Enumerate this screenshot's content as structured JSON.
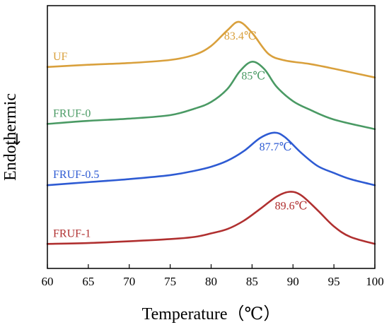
{
  "chart_data": {
    "type": "line",
    "xlabel": "Temperature（℃）",
    "ylabel": "Endothermic",
    "ylabel_arrow": "↓",
    "xlim": [
      60,
      100
    ],
    "xticks": [
      60,
      65,
      70,
      75,
      80,
      85,
      90,
      95,
      100
    ],
    "grid": false,
    "yticks_shown": false,
    "series": [
      {
        "name": "UF",
        "color": "#D9A03C",
        "peak_label": "83.4℃",
        "peak_x": 83.4,
        "x": [
          60,
          65,
          70,
          75,
          78,
          80,
          82,
          83.4,
          85,
          87,
          89,
          92,
          95,
          100
        ],
        "y": [
          1.0,
          1.05,
          1.09,
          1.16,
          1.28,
          1.48,
          1.84,
          2.03,
          1.78,
          1.3,
          1.15,
          1.07,
          0.96,
          0.76
        ]
      },
      {
        "name": "FRUF-0",
        "color": "#4A9A64",
        "peak_label": "85℃",
        "peak_x": 85,
        "x": [
          60,
          65,
          70,
          75,
          78,
          80,
          82,
          83.5,
          85,
          86.5,
          88,
          90,
          92,
          95,
          100
        ],
        "y": [
          -0.3,
          -0.23,
          -0.18,
          -0.1,
          0.05,
          0.2,
          0.5,
          0.9,
          1.12,
          0.95,
          0.55,
          0.22,
          0.03,
          -0.2,
          -0.42
        ]
      },
      {
        "name": "FRUF-0.5",
        "color": "#2E5BD3",
        "peak_label": "87.7℃",
        "peak_x": 87.7,
        "x": [
          60,
          65,
          70,
          75,
          78,
          80,
          82,
          84,
          86,
          87.7,
          89,
          91,
          93,
          95,
          97,
          100
        ],
        "y": [
          -1.7,
          -1.63,
          -1.56,
          -1.47,
          -1.37,
          -1.28,
          -1.14,
          -0.92,
          -0.62,
          -0.5,
          -0.6,
          -0.96,
          -1.26,
          -1.42,
          -1.56,
          -1.7
        ]
      },
      {
        "name": "FRUF-1",
        "color": "#B03030",
        "peak_label": "89.6℃",
        "peak_x": 89.6,
        "x": [
          60,
          65,
          70,
          75,
          78,
          80,
          82,
          84,
          86,
          88,
          89.6,
          91,
          93,
          95,
          97,
          100
        ],
        "y": [
          -3.04,
          -3.02,
          -2.98,
          -2.93,
          -2.88,
          -2.8,
          -2.7,
          -2.51,
          -2.24,
          -1.96,
          -1.85,
          -1.93,
          -2.27,
          -2.64,
          -2.88,
          -3.04
        ]
      }
    ]
  }
}
